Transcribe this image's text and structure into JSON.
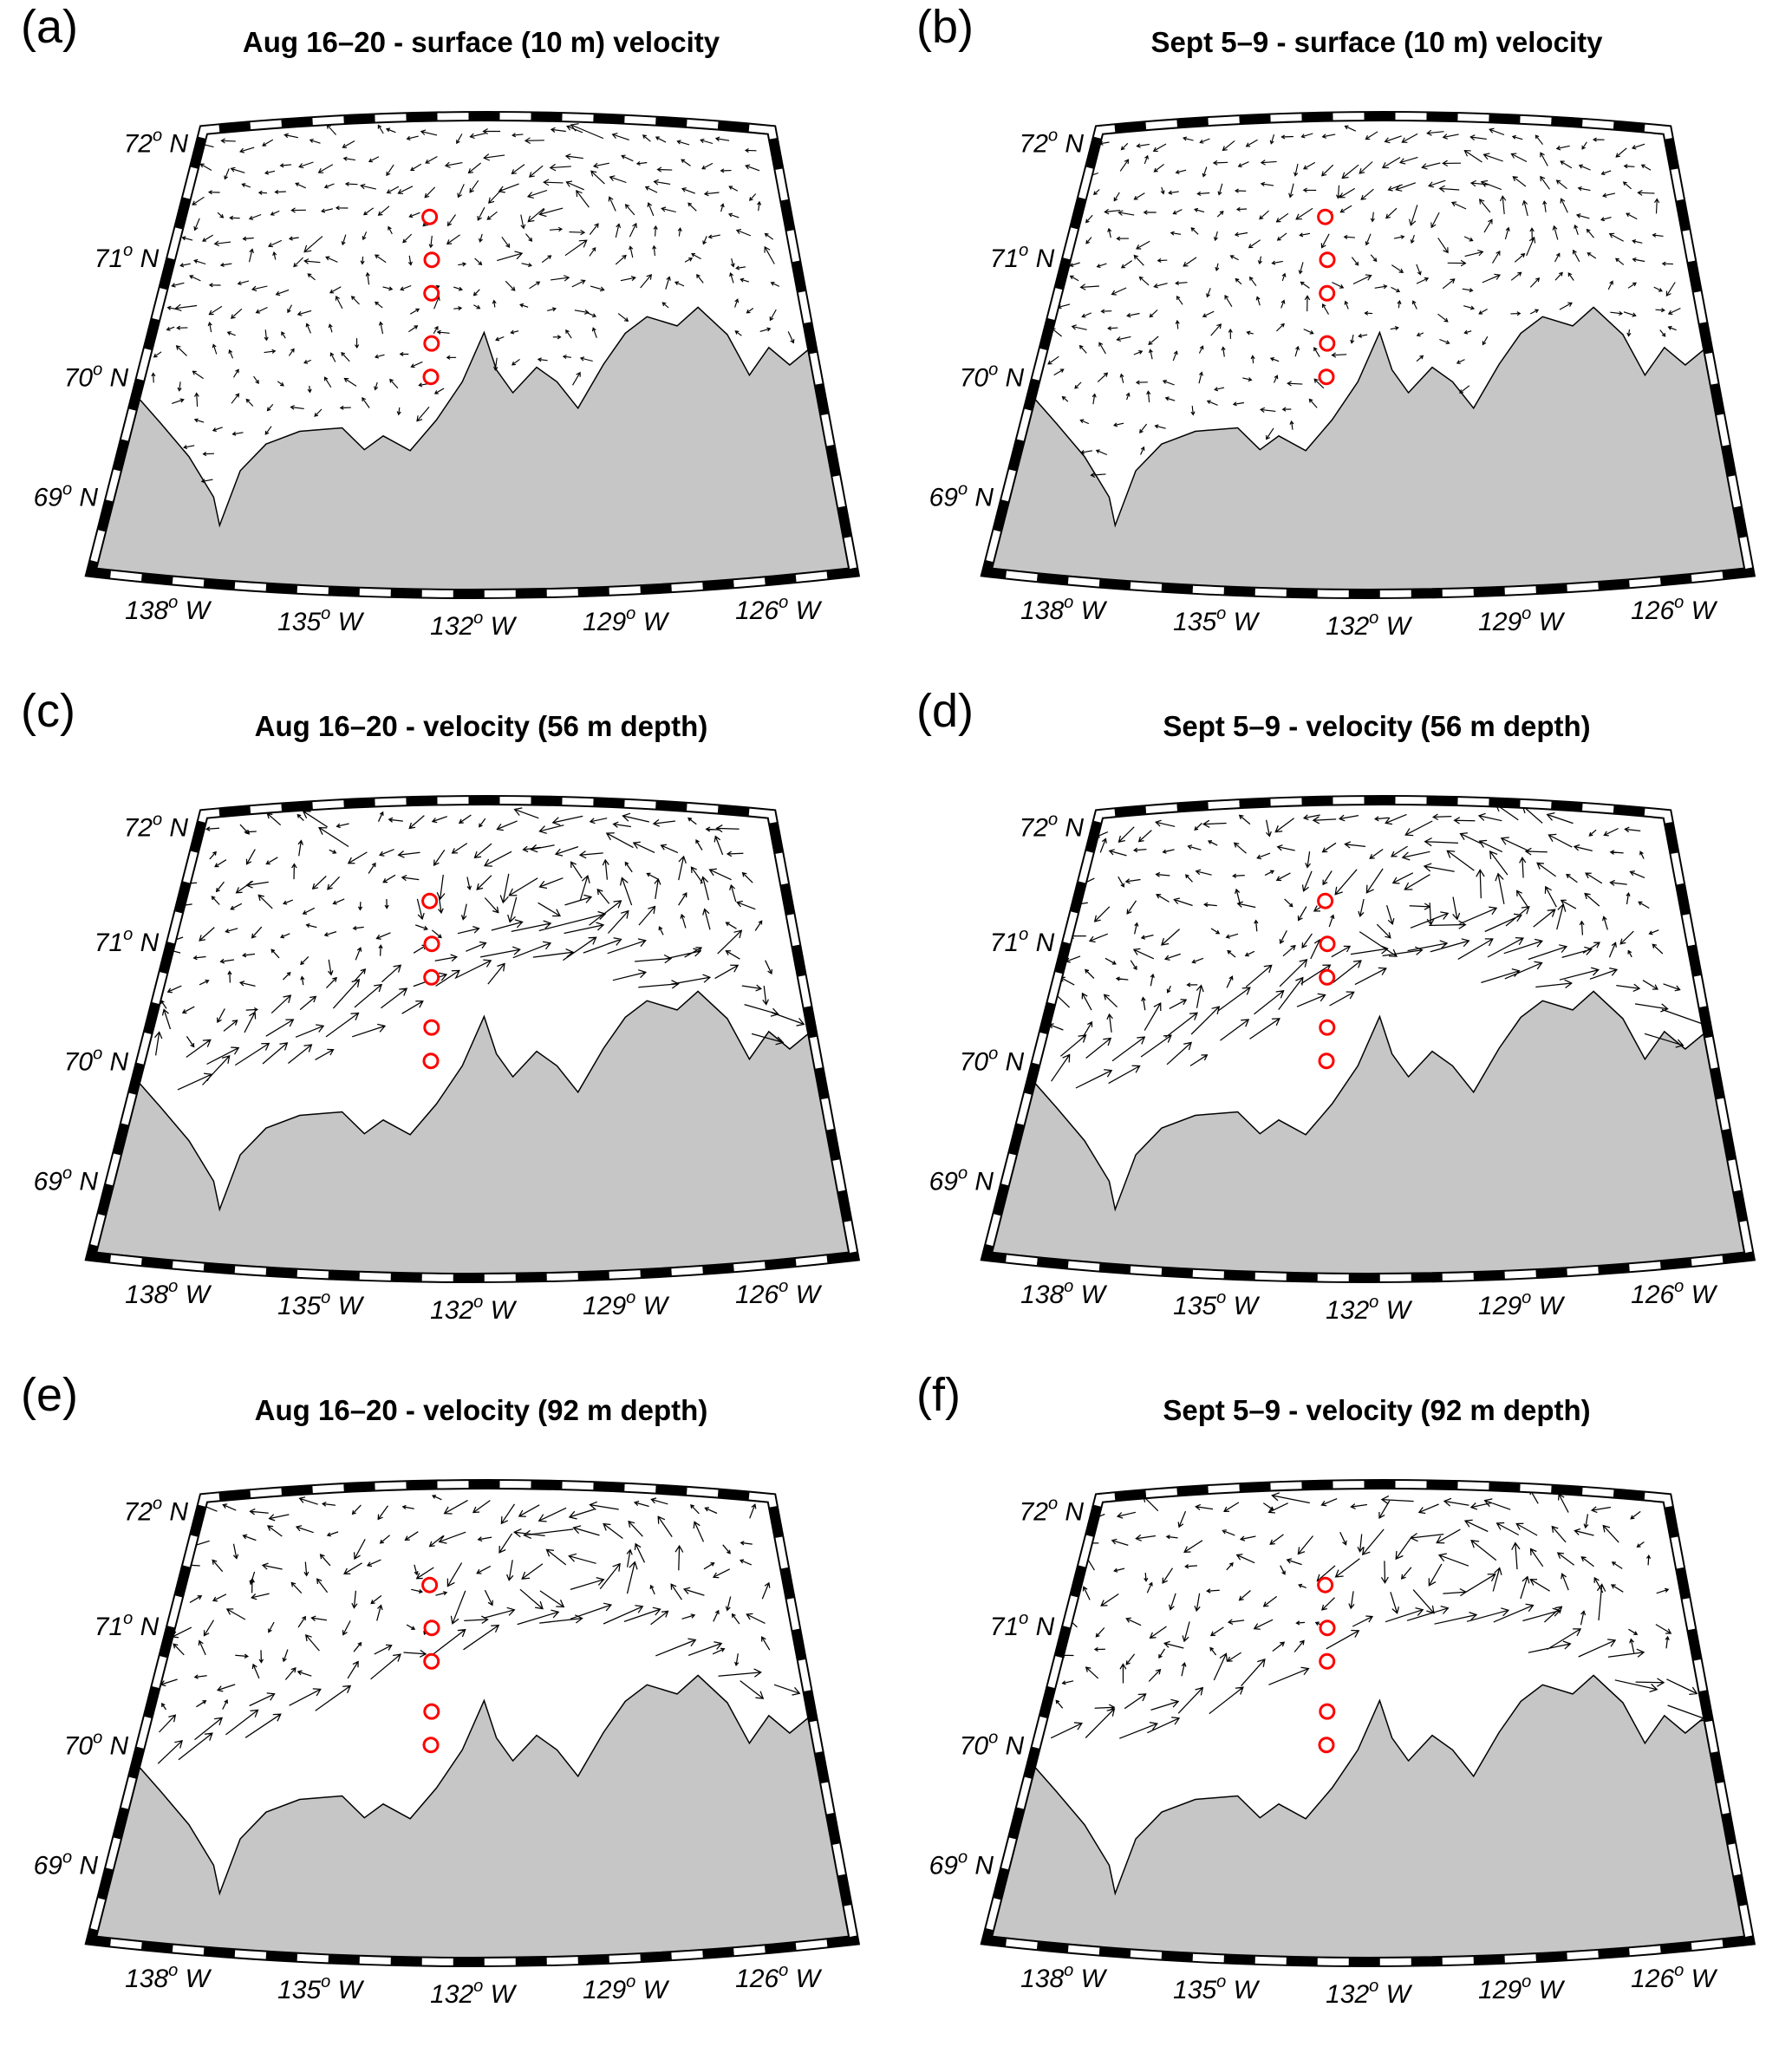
{
  "figure": {
    "panels": [
      {
        "label": "(a)",
        "title": "Aug 16–20 - surface (10 m) velocity",
        "seed": 11,
        "depth_class": "full"
      },
      {
        "label": "(b)",
        "title": "Sept 5–9 - surface (10 m) velocity",
        "seed": 27,
        "depth_class": "full"
      },
      {
        "label": "(c)",
        "title": "Aug 16–20 - velocity (56 m depth)",
        "seed": 43,
        "depth_class": "mid"
      },
      {
        "label": "(d)",
        "title": "Sept 5–9 - velocity (56 m depth)",
        "seed": 59,
        "depth_class": "mid"
      },
      {
        "label": "(e)",
        "title": "Aug 16–20 - velocity (92 m depth)",
        "seed": 71,
        "depth_class": "deep"
      },
      {
        "label": "(f)",
        "title": "Sept 5–9 - velocity (92 m depth)",
        "seed": 87,
        "depth_class": "deep"
      }
    ],
    "lat_ticks": [
      {
        "num": "72",
        "sup": "o",
        "suffix": "N",
        "v": 0.03
      },
      {
        "num": "71",
        "sup": "o",
        "suffix": "N",
        "v": 0.29
      },
      {
        "num": "70",
        "sup": "o",
        "suffix": "N",
        "v": 0.56
      },
      {
        "num": "69",
        "sup": "o",
        "suffix": "N",
        "v": 0.83
      }
    ],
    "lon_ticks": [
      {
        "num": "138",
        "sup": "o",
        "suffix": "W",
        "u": 0.1
      },
      {
        "num": "135",
        "sup": "o",
        "suffix": "W",
        "u": 0.3
      },
      {
        "num": "132",
        "sup": "o",
        "suffix": "W",
        "u": 0.5
      },
      {
        "num": "129",
        "sup": "o",
        "suffix": "W",
        "u": 0.7
      },
      {
        "num": "126",
        "sup": "o",
        "suffix": "W",
        "u": 0.9
      }
    ],
    "stations": [
      {
        "u": 0.41,
        "v": 0.21
      },
      {
        "u": 0.418,
        "v": 0.3
      },
      {
        "u": 0.421,
        "v": 0.37
      },
      {
        "u": 0.426,
        "v": 0.475
      },
      {
        "u": 0.428,
        "v": 0.545
      }
    ],
    "colors": {
      "station": "#ff0000",
      "land": "#c6c6c6",
      "arrow": "#000000",
      "frame": "#000000"
    }
  },
  "chart_data": [
    {
      "type": "scatter",
      "title": "Aug 16–20 - surface (10 m) velocity",
      "x_tick_labels": [
        "138° W",
        "135° W",
        "132° W",
        "129° W",
        "126° W"
      ],
      "y_tick_labels": [
        "72° N",
        "71° N",
        "70° N",
        "69° N"
      ],
      "series": [
        {
          "name": "mooring-stations",
          "marker": "open red circle",
          "lon_deg_W": [
            133.3,
            133.3,
            133.3,
            133.3,
            133.3
          ],
          "lat_deg_N": [
            71.3,
            70.95,
            70.7,
            70.3,
            70.05
          ]
        }
      ],
      "overlay": "quiver arrows of ocean velocity over full basin; gray land along southern boundary"
    },
    {
      "type": "scatter",
      "title": "Sept 5–9 - surface (10 m) velocity",
      "x_tick_labels": [
        "138° W",
        "135° W",
        "132° W",
        "129° W",
        "126° W"
      ],
      "y_tick_labels": [
        "72° N",
        "71° N",
        "70° N",
        "69° N"
      ],
      "series": [
        {
          "name": "mooring-stations",
          "marker": "open red circle",
          "lon_deg_W": [
            133.3,
            133.3,
            133.3,
            133.3,
            133.3
          ],
          "lat_deg_N": [
            71.3,
            70.95,
            70.7,
            70.3,
            70.05
          ]
        }
      ],
      "overlay": "quiver arrows of ocean velocity over full basin; gray land along southern boundary"
    },
    {
      "type": "scatter",
      "title": "Aug 16–20 - velocity (56 m depth)",
      "x_tick_labels": [
        "138° W",
        "135° W",
        "132° W",
        "129° W",
        "126° W"
      ],
      "y_tick_labels": [
        "72° N",
        "71° N",
        "70° N",
        "69° N"
      ],
      "series": [
        {
          "name": "mooring-stations",
          "marker": "open red circle",
          "lon_deg_W": [
            133.3,
            133.3,
            133.3,
            133.3,
            133.3
          ],
          "lat_deg_N": [
            71.3,
            70.95,
            70.7,
            70.3,
            70.05
          ]
        }
      ],
      "overlay": "quiver arrows only in deep water; strong along-slope jet; blank shelf region above land"
    },
    {
      "type": "scatter",
      "title": "Sept 5–9 - velocity (56 m depth)",
      "x_tick_labels": [
        "138° W",
        "135° W",
        "132° W",
        "129° W",
        "126° W"
      ],
      "y_tick_labels": [
        "72° N",
        "71° N",
        "70° N",
        "69° N"
      ],
      "series": [
        {
          "name": "mooring-stations",
          "marker": "open red circle",
          "lon_deg_W": [
            133.3,
            133.3,
            133.3,
            133.3,
            133.3
          ],
          "lat_deg_N": [
            71.3,
            70.95,
            70.7,
            70.3,
            70.05
          ]
        }
      ],
      "overlay": "quiver arrows only in deep water; strong along-slope jet; blank shelf region above land"
    },
    {
      "type": "scatter",
      "title": "Aug 16–20 - velocity (92 m depth)",
      "x_tick_labels": [
        "138° W",
        "135° W",
        "132° W",
        "129° W",
        "126° W"
      ],
      "y_tick_labels": [
        "72° N",
        "71° N",
        "70° N",
        "69° N"
      ],
      "series": [
        {
          "name": "mooring-stations",
          "marker": "open red circle",
          "lon_deg_W": [
            133.3,
            133.3,
            133.3,
            133.3,
            133.3
          ],
          "lat_deg_N": [
            71.3,
            70.95,
            70.7,
            70.3,
            70.05
          ]
        }
      ],
      "overlay": "sparser quiver arrows confined to deepest water along slope and basin interior"
    },
    {
      "type": "scatter",
      "title": "Sept 5–9 - velocity (92 m depth)",
      "x_tick_labels": [
        "138° W",
        "135° W",
        "132° W",
        "129° W",
        "126° W"
      ],
      "y_tick_labels": [
        "72° N",
        "71° N",
        "70° N",
        "69° N"
      ],
      "series": [
        {
          "name": "mooring-stations",
          "marker": "open red circle",
          "lon_deg_W": [
            133.3,
            133.3,
            133.3,
            133.3,
            133.3
          ],
          "lat_deg_N": [
            71.3,
            70.95,
            70.7,
            70.3,
            70.05
          ]
        }
      ],
      "overlay": "sparser quiver arrows confined to deepest water along slope and basin interior"
    }
  ]
}
